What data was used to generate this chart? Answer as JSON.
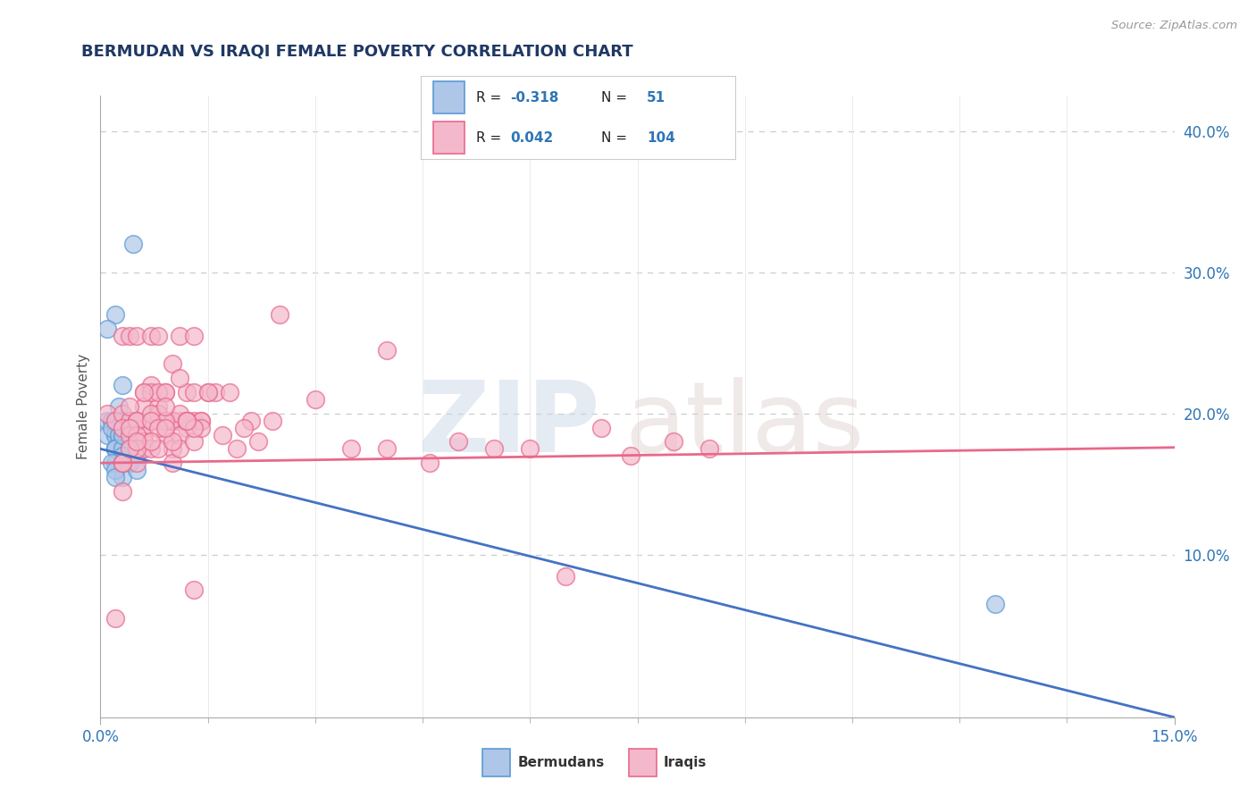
{
  "title": "BERMUDAN VS IRAQI FEMALE POVERTY CORRELATION CHART",
  "source": "Source: ZipAtlas.com",
  "ylabel": "Female Poverty",
  "color_blue_fill": "#aec6e8",
  "color_blue_edge": "#5b9bd5",
  "color_pink_fill": "#f4b8cc",
  "color_pink_edge": "#e8698a",
  "color_blue_line": "#4472c4",
  "color_pink_line": "#e8698a",
  "color_text_blue": "#2e75b6",
  "title_color": "#1f3864",
  "xlim": [
    0.0,
    0.15
  ],
  "ylim": [
    -0.015,
    0.425
  ],
  "right_ytick_vals": [
    0.1,
    0.2,
    0.3,
    0.4
  ],
  "right_ytick_labels": [
    "10.0%",
    "20.0%",
    "30.0%",
    "40.0%"
  ],
  "R_bermudan": -0.318,
  "N_bermudan": 51,
  "R_iraqi": 0.042,
  "N_iraqi": 104,
  "bermudan_x": [
    0.001,
    0.002,
    0.001,
    0.0015,
    0.002,
    0.003,
    0.0025,
    0.002,
    0.001,
    0.0035,
    0.002,
    0.003,
    0.004,
    0.003,
    0.0025,
    0.004,
    0.003,
    0.003,
    0.004,
    0.003,
    0.002,
    0.0015,
    0.0025,
    0.004,
    0.003,
    0.004,
    0.003,
    0.003,
    0.002,
    0.0045,
    0.003,
    0.0035,
    0.003,
    0.002,
    0.003,
    0.004,
    0.003,
    0.004,
    0.004,
    0.002,
    0.003,
    0.004,
    0.002,
    0.0015,
    0.005,
    0.003,
    0.002,
    0.125,
    0.005,
    0.003,
    0.002
  ],
  "bermudan_y": [
    0.195,
    0.27,
    0.26,
    0.195,
    0.195,
    0.22,
    0.205,
    0.185,
    0.185,
    0.195,
    0.185,
    0.18,
    0.195,
    0.19,
    0.185,
    0.185,
    0.19,
    0.19,
    0.185,
    0.185,
    0.175,
    0.19,
    0.185,
    0.195,
    0.195,
    0.175,
    0.185,
    0.19,
    0.175,
    0.32,
    0.175,
    0.18,
    0.175,
    0.175,
    0.175,
    0.18,
    0.185,
    0.175,
    0.165,
    0.195,
    0.17,
    0.165,
    0.165,
    0.165,
    0.17,
    0.155,
    0.16,
    0.065,
    0.16,
    0.165,
    0.155
  ],
  "iraqi_x": [
    0.001,
    0.002,
    0.003,
    0.003,
    0.004,
    0.004,
    0.005,
    0.005,
    0.006,
    0.006,
    0.006,
    0.007,
    0.007,
    0.007,
    0.008,
    0.008,
    0.008,
    0.009,
    0.009,
    0.01,
    0.01,
    0.01,
    0.011,
    0.011,
    0.012,
    0.012,
    0.013,
    0.013,
    0.014,
    0.014,
    0.003,
    0.004,
    0.005,
    0.006,
    0.007,
    0.008,
    0.009,
    0.01,
    0.011,
    0.012,
    0.004,
    0.005,
    0.006,
    0.007,
    0.008,
    0.009,
    0.01,
    0.011,
    0.012,
    0.013,
    0.005,
    0.006,
    0.007,
    0.008,
    0.009,
    0.01,
    0.011,
    0.012,
    0.013,
    0.014,
    0.003,
    0.005,
    0.007,
    0.009,
    0.011,
    0.013,
    0.015,
    0.017,
    0.019,
    0.021,
    0.004,
    0.006,
    0.008,
    0.01,
    0.012,
    0.016,
    0.018,
    0.02,
    0.022,
    0.024,
    0.003,
    0.005,
    0.007,
    0.009,
    0.013,
    0.015,
    0.046,
    0.06,
    0.074,
    0.04,
    0.025,
    0.03,
    0.035,
    0.04,
    0.05,
    0.055,
    0.065,
    0.07,
    0.08,
    0.085,
    0.002,
    0.003,
    0.004,
    0.005
  ],
  "iraqi_y": [
    0.2,
    0.195,
    0.255,
    0.2,
    0.195,
    0.255,
    0.195,
    0.255,
    0.215,
    0.19,
    0.205,
    0.22,
    0.195,
    0.255,
    0.195,
    0.205,
    0.255,
    0.195,
    0.215,
    0.195,
    0.195,
    0.235,
    0.195,
    0.255,
    0.195,
    0.215,
    0.195,
    0.255,
    0.195,
    0.195,
    0.19,
    0.205,
    0.195,
    0.185,
    0.215,
    0.2,
    0.185,
    0.195,
    0.2,
    0.19,
    0.185,
    0.195,
    0.175,
    0.2,
    0.215,
    0.195,
    0.175,
    0.185,
    0.195,
    0.075,
    0.165,
    0.18,
    0.195,
    0.19,
    0.215,
    0.165,
    0.175,
    0.195,
    0.18,
    0.19,
    0.165,
    0.185,
    0.175,
    0.205,
    0.225,
    0.19,
    0.215,
    0.185,
    0.175,
    0.195,
    0.19,
    0.215,
    0.175,
    0.18,
    0.195,
    0.215,
    0.215,
    0.19,
    0.18,
    0.195,
    0.145,
    0.175,
    0.18,
    0.19,
    0.215,
    0.215,
    0.165,
    0.175,
    0.17,
    0.175,
    0.27,
    0.21,
    0.175,
    0.245,
    0.18,
    0.175,
    0.085,
    0.19,
    0.18,
    0.175,
    0.055,
    0.165,
    0.175,
    0.18
  ]
}
